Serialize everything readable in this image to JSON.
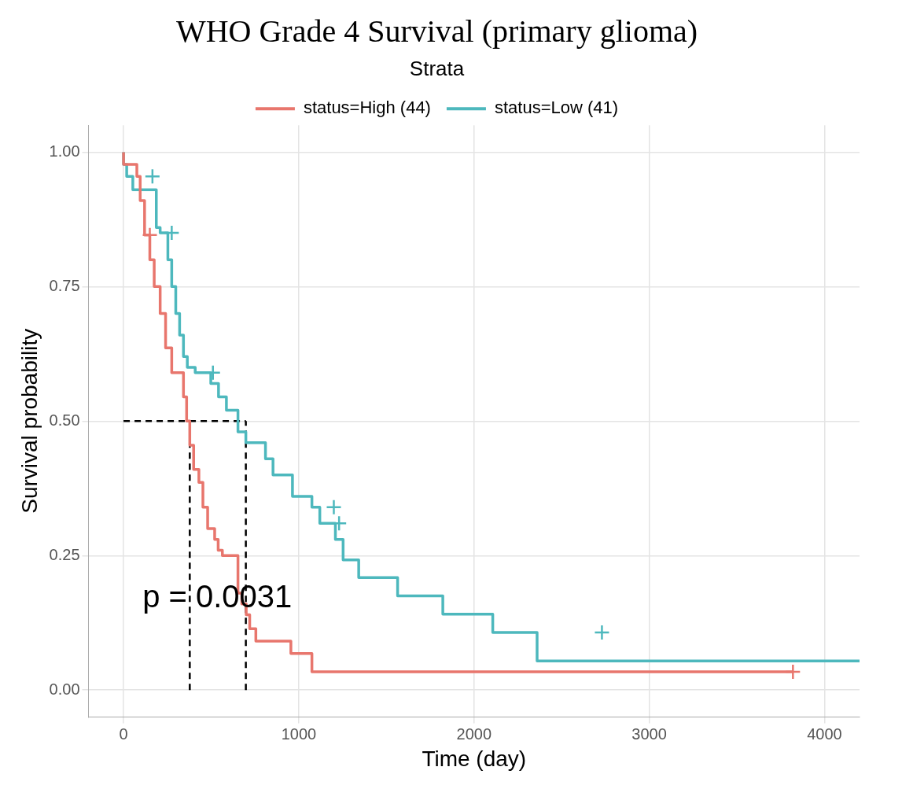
{
  "chart_data": {
    "type": "step",
    "title": "WHO Grade 4 Survival (primary glioma)",
    "legend_title": "Strata",
    "xlabel": "Time (day)",
    "ylabel": "Survival probability",
    "annotations": [
      "p = 0.0031"
    ],
    "xlim": [
      -200,
      4200
    ],
    "xticks": [
      0,
      1000,
      2000,
      3000,
      4000
    ],
    "ylim": [
      -0.05,
      1.05
    ],
    "yticks": [
      {
        "value": 0,
        "label": "0.00"
      },
      {
        "value": 0.25,
        "label": "0.25"
      },
      {
        "value": 0.5,
        "label": "0.50"
      },
      {
        "value": 0.75,
        "label": "0.75"
      },
      {
        "value": 1,
        "label": "1.00"
      }
    ],
    "grid": true,
    "legend": "top",
    "series": [
      {
        "name": "status=High (44)",
        "color": "#e8766d",
        "x": [
          0,
          76,
          95,
          120,
          150,
          175,
          209,
          240,
          275,
          342,
          360,
          378,
          400,
          430,
          453,
          480,
          520,
          540,
          564,
          653,
          675,
          700,
          720,
          755,
          955,
          1075,
          1120,
          3820
        ],
        "values": [
          1,
          0.977,
          0.955,
          0.91,
          0.846,
          0.8,
          0.75,
          0.7,
          0.636,
          0.59,
          0.545,
          0.5,
          0.455,
          0.41,
          0.386,
          0.34,
          0.3,
          0.28,
          0.26,
          0.25,
          0.18,
          0.16,
          0.14,
          0.114,
          0.091,
          0.068,
          0.034,
          0.034
        ]
      },
      {
        "name": "status=Low (41)",
        "color": "#4db8bd",
        "x": [
          0,
          18,
          53,
          187,
          209,
          253,
          275,
          298,
          320,
          342,
          364,
          409,
          498,
          542,
          587,
          653,
          698,
          810,
          853,
          964,
          1075,
          1120,
          1209,
          1253,
          1342,
          1564,
          1822,
          2107,
          2360,
          3053,
          4200
        ],
        "values": [
          1,
          0.977,
          0.955,
          0.93,
          0.86,
          0.85,
          0.8,
          0.75,
          0.7,
          0.66,
          0.62,
          0.6,
          0.59,
          0.57,
          0.545,
          0.52,
          0.48,
          0.46,
          0.43,
          0.4,
          0.36,
          0.34,
          0.31,
          0.28,
          0.242,
          0.209,
          0.175,
          0.141,
          0.107,
          0.054,
          0.054
        ]
      },
      {
        "type": "scatter",
        "marker": "cross",
        "color": "#e8766d",
        "x": [
          150,
          3820
        ],
        "values": [
          0.846,
          0.034
        ]
      },
      {
        "type": "scatter",
        "marker": "cross",
        "color": "#4db8bd",
        "x": [
          165,
          275,
          510,
          1200,
          1230,
          2730
        ],
        "values": [
          0.955,
          0.85,
          0.59,
          0.34,
          0.31,
          0.107
        ]
      },
      {
        "type": "line",
        "line_style": "dashed",
        "color": "#000000",
        "x": [
          0,
          698
        ],
        "values": [
          0.5,
          0.5
        ]
      },
      {
        "type": "line",
        "line_style": "dashed",
        "color": "#000000",
        "x": [
          378,
          378
        ],
        "values": [
          0,
          0.5
        ]
      },
      {
        "type": "line",
        "line_style": "dashed",
        "color": "#000000",
        "x": [
          698,
          698
        ],
        "values": [
          0,
          0.5
        ]
      }
    ]
  }
}
